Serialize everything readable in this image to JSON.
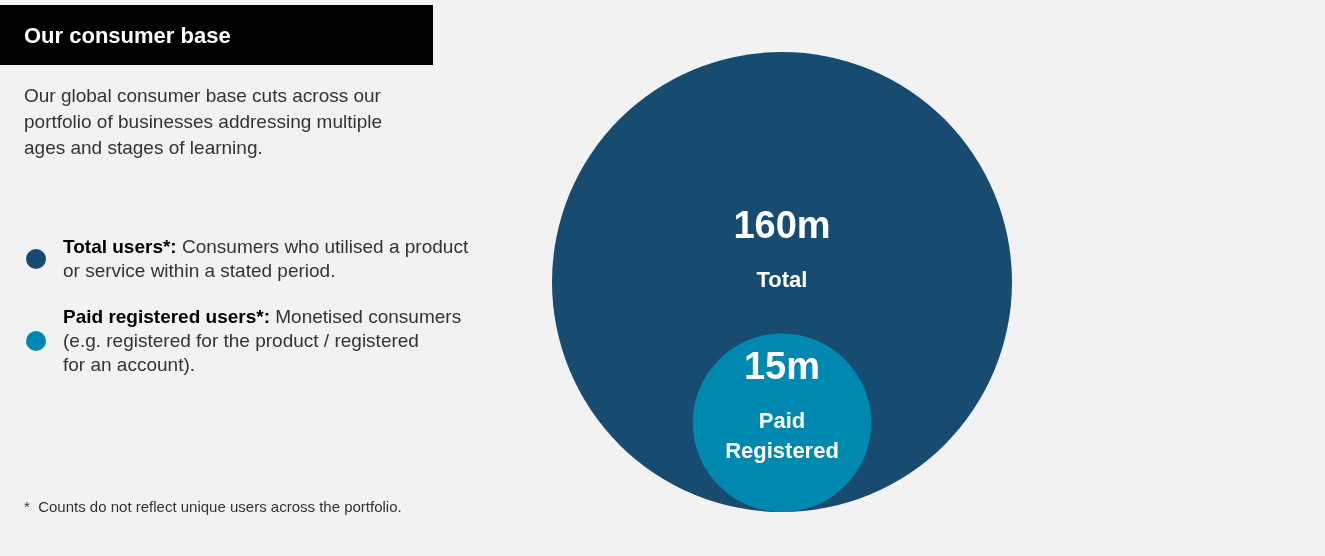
{
  "chart_data": {
    "type": "other",
    "title": "Our consumer base",
    "subtitle": "Our global consumer base cuts across our portfolio of businesses addressing multiple ages and stages of learning.",
    "categories": [
      "Total",
      "Paid Registered"
    ],
    "values": [
      160,
      15
    ],
    "value_labels": [
      "160m",
      "15m"
    ],
    "colors": [
      "#174b70",
      "#0089b0"
    ],
    "annotations": [
      "Total users*: Consumers who utilised a product or service within a stated period.",
      "Paid registered users*: Monetised consumers (e.g. registered for the product / registered for an account).",
      "*  Counts do not reflect unique users across the portfolio."
    ]
  }
}
